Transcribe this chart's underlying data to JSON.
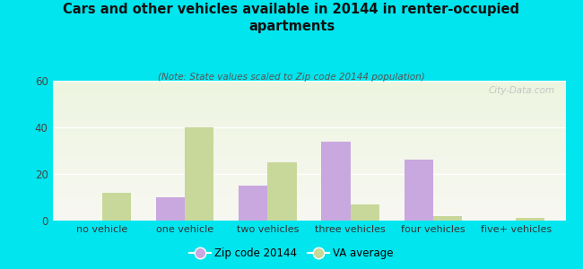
{
  "title": "Cars and other vehicles available in 20144 in renter-occupied\napartments",
  "subtitle": "(Note: State values scaled to Zip code 20144 population)",
  "categories": [
    "no vehicle",
    "one vehicle",
    "two vehicles",
    "three vehicles",
    "four vehicles",
    "five+ vehicles"
  ],
  "zip_values": [
    0,
    10,
    15,
    34,
    26,
    0
  ],
  "va_values": [
    12,
    40,
    25,
    7,
    2,
    1
  ],
  "zip_color": "#c9a8e0",
  "va_color": "#c8d89a",
  "background_color": "#00e5ee",
  "ylim": [
    0,
    60
  ],
  "yticks": [
    0,
    20,
    40,
    60
  ],
  "bar_width": 0.35,
  "legend_zip_label": "Zip code 20144",
  "legend_va_label": "VA average",
  "watermark": "City-Data.com"
}
